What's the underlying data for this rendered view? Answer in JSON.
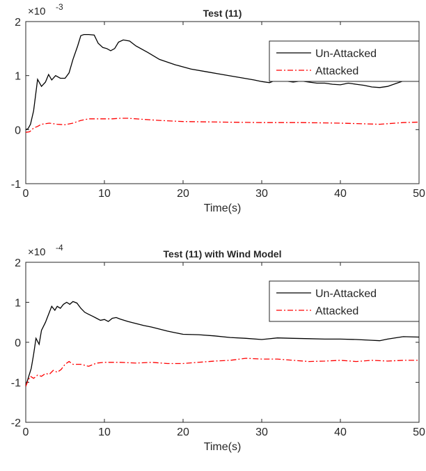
{
  "chart_data": [
    {
      "type": "line",
      "title": "Test (11)",
      "xlabel": "Time(s)",
      "ylabel": "",
      "exponent_label": "×10",
      "exponent_power": "-3",
      "xlim": [
        0,
        50
      ],
      "ylim": [
        -1,
        2
      ],
      "xticks": [
        "0",
        "10",
        "20",
        "30",
        "40",
        "50"
      ],
      "yticks": [
        "-1",
        "0",
        "1",
        "2"
      ],
      "grid": false,
      "legend_position": "top-right",
      "series": [
        {
          "name": "Un-Attacked",
          "color": "#000000",
          "dash": "solid",
          "x": [
            0,
            0.3,
            0.6,
            1.0,
            1.5,
            2.0,
            2.5,
            2.9,
            3.3,
            3.8,
            4.4,
            5.0,
            5.5,
            6.0,
            6.6,
            7.0,
            7.4,
            8.0,
            8.7,
            9.2,
            9.8,
            10.3,
            10.8,
            11.3,
            11.8,
            12.4,
            13.2,
            14.0,
            15.5,
            17.0,
            19.0,
            21.0,
            23.0,
            25.0,
            27.0,
            29.0,
            30.0,
            31.0,
            32.0,
            33.0,
            34.0,
            35.0,
            36.0,
            37.0,
            38.0,
            39.0,
            40.0,
            41.0,
            42.0,
            43.0,
            44.0,
            45.0,
            46.0,
            47.0,
            48.0,
            49.0,
            50.0
          ],
          "y": [
            0.0,
            0.02,
            0.1,
            0.35,
            0.93,
            0.8,
            0.88,
            1.02,
            0.92,
            1.0,
            0.95,
            0.95,
            1.05,
            1.3,
            1.55,
            1.74,
            1.76,
            1.76,
            1.75,
            1.6,
            1.52,
            1.5,
            1.46,
            1.5,
            1.62,
            1.66,
            1.64,
            1.55,
            1.43,
            1.3,
            1.2,
            1.12,
            1.07,
            1.02,
            0.97,
            0.92,
            0.89,
            0.87,
            0.93,
            0.9,
            0.88,
            0.9,
            0.88,
            0.86,
            0.86,
            0.84,
            0.83,
            0.86,
            0.84,
            0.82,
            0.79,
            0.78,
            0.8,
            0.85,
            0.9,
            0.95,
            0.96
          ]
        },
        {
          "name": "Attacked",
          "color": "#ff0000",
          "dash": "dash-dot",
          "x": [
            0,
            0.5,
            1.0,
            1.5,
            2.0,
            3.0,
            4.0,
            5.0,
            6.0,
            7.0,
            8.0,
            9.0,
            10.0,
            11.0,
            12.0,
            13.0,
            15.0,
            17.0,
            20.0,
            25.0,
            30.0,
            35.0,
            40.0,
            45.0,
            48.0,
            50.0
          ],
          "y": [
            -0.05,
            -0.04,
            0.03,
            0.06,
            0.1,
            0.12,
            0.1,
            0.09,
            0.12,
            0.17,
            0.2,
            0.2,
            0.2,
            0.2,
            0.21,
            0.21,
            0.19,
            0.17,
            0.15,
            0.14,
            0.13,
            0.13,
            0.12,
            0.1,
            0.13,
            0.14
          ]
        }
      ]
    },
    {
      "type": "line",
      "title": "Test (11) with Wind Model",
      "xlabel": "Time(s)",
      "ylabel": "",
      "exponent_label": "×10",
      "exponent_power": "-4",
      "xlim": [
        0,
        50
      ],
      "ylim": [
        -2,
        2
      ],
      "xticks": [
        "0",
        "10",
        "20",
        "30",
        "40",
        "50"
      ],
      "yticks": [
        "-2",
        "-1",
        "0",
        "1",
        "2"
      ],
      "grid": false,
      "legend_position": "top-right",
      "series": [
        {
          "name": "Un-Attacked",
          "color": "#000000",
          "dash": "solid",
          "x": [
            0,
            0.3,
            0.7,
            1.0,
            1.3,
            1.7,
            2.0,
            2.5,
            3.0,
            3.3,
            3.7,
            4.0,
            4.4,
            4.8,
            5.2,
            5.6,
            6.0,
            6.5,
            7.0,
            7.5,
            8.0,
            8.5,
            9.0,
            9.5,
            10.0,
            10.5,
            11.0,
            11.5,
            12.0,
            13.0,
            14.0,
            15.0,
            16.0,
            17.0,
            18.0,
            19.0,
            20.0,
            22.0,
            24.0,
            26.0,
            28.0,
            30.0,
            32.0,
            34.0,
            36.0,
            38.0,
            40.0,
            42.0,
            44.0,
            45.0,
            46.0,
            48.0,
            50.0
          ],
          "y": [
            -1.1,
            -0.9,
            -0.65,
            -0.3,
            0.1,
            -0.05,
            0.3,
            0.5,
            0.75,
            0.9,
            0.8,
            0.9,
            0.85,
            0.95,
            1.0,
            0.95,
            1.02,
            0.98,
            0.85,
            0.75,
            0.7,
            0.65,
            0.6,
            0.55,
            0.57,
            0.52,
            0.6,
            0.62,
            0.58,
            0.52,
            0.47,
            0.42,
            0.38,
            0.33,
            0.28,
            0.24,
            0.2,
            0.19,
            0.16,
            0.12,
            0.1,
            0.07,
            0.11,
            0.1,
            0.09,
            0.08,
            0.08,
            0.07,
            0.05,
            0.04,
            0.08,
            0.14,
            0.13
          ]
        },
        {
          "name": "Attacked",
          "color": "#ff0000",
          "dash": "dash-dot",
          "x": [
            0,
            0.3,
            0.6,
            1.0,
            1.5,
            2.0,
            2.5,
            3.0,
            3.5,
            4.0,
            4.5,
            5.0,
            5.5,
            6.0,
            7.0,
            8.0,
            9.0,
            10.0,
            12.0,
            14.0,
            16.0,
            18.0,
            20.0,
            24.0,
            26.0,
            28.0,
            30.0,
            32.0,
            34.0,
            36.0,
            38.0,
            40.0,
            42.0,
            44.0,
            46.0,
            48.0,
            50.0
          ],
          "y": [
            -1.1,
            -0.95,
            -0.85,
            -0.9,
            -0.82,
            -0.85,
            -0.78,
            -0.8,
            -0.7,
            -0.75,
            -0.68,
            -0.55,
            -0.48,
            -0.55,
            -0.55,
            -0.6,
            -0.52,
            -0.5,
            -0.5,
            -0.52,
            -0.5,
            -0.53,
            -0.53,
            -0.47,
            -0.45,
            -0.4,
            -0.42,
            -0.42,
            -0.45,
            -0.48,
            -0.47,
            -0.45,
            -0.48,
            -0.45,
            -0.47,
            -0.45,
            -0.45
          ]
        }
      ]
    }
  ]
}
